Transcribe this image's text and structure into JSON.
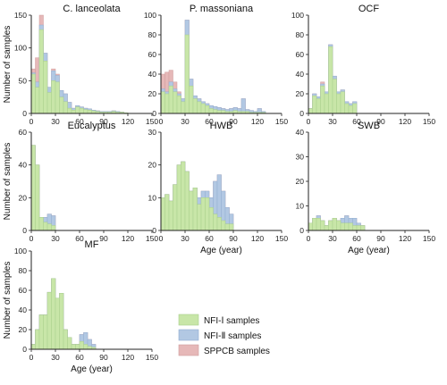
{
  "legend": {
    "items": [
      {
        "label": "NFI-Ⅰ samples",
        "color": "#c8e6a8",
        "edge": "#a9cf8c"
      },
      {
        "label": "NFI-Ⅱ samples",
        "color": "#b2c8e3",
        "edge": "#93aed1"
      },
      {
        "label": "SPPCB samples",
        "color": "#e6b8b8",
        "edge": "#cf9c9c"
      }
    ]
  },
  "chart_data": [
    {
      "type": "bar",
      "title": "C. lanceolata",
      "xlabel": "",
      "ylabel": "Number of samples",
      "xlim": [
        0,
        150
      ],
      "ylim": [
        0,
        150
      ],
      "bin_width": 5,
      "xticks": [
        0,
        30,
        60,
        90,
        120,
        150
      ],
      "yticks": [
        0,
        50,
        100,
        150
      ],
      "series": [
        {
          "name": "NFI-Ⅰ samples",
          "x": [
            0,
            5,
            10,
            15,
            20,
            25,
            30,
            35,
            40,
            45,
            50,
            55,
            60,
            65,
            70,
            75,
            80,
            85,
            90,
            95,
            100,
            105,
            110,
            115
          ],
          "values": [
            60,
            40,
            128,
            80,
            32,
            50,
            48,
            25,
            18,
            8,
            5,
            10,
            8,
            6,
            5,
            4,
            3,
            2,
            2,
            2,
            3,
            2,
            2,
            1
          ]
        },
        {
          "name": "NFI-Ⅱ samples",
          "x": [
            0,
            5,
            10,
            15,
            20,
            25,
            30,
            35,
            40,
            45,
            50,
            55,
            60,
            65,
            70,
            75,
            80,
            85,
            90,
            95,
            100,
            105,
            110,
            115
          ],
          "values": [
            62,
            48,
            135,
            92,
            40,
            65,
            58,
            35,
            30,
            17,
            8,
            12,
            10,
            8,
            7,
            5,
            4,
            3,
            3,
            3,
            4,
            3,
            2,
            1
          ]
        },
        {
          "name": "SPPCB samples",
          "x": [
            0,
            5,
            10,
            15,
            20,
            25,
            30,
            35,
            40,
            45,
            50,
            55,
            60,
            65,
            70,
            75,
            80,
            85,
            90,
            95,
            100,
            105,
            110,
            115
          ],
          "values": [
            68,
            85,
            150,
            92,
            40,
            68,
            60,
            35,
            30,
            17,
            8,
            12,
            10,
            8,
            7,
            5,
            4,
            3,
            3,
            3,
            4,
            3,
            2,
            1
          ]
        }
      ]
    },
    {
      "type": "bar",
      "title": "P. massoniana",
      "xlabel": "",
      "ylabel": "",
      "xlim": [
        0,
        150
      ],
      "ylim": [
        0,
        100
      ],
      "bin_width": 5,
      "xticks": [
        0,
        30,
        60,
        90,
        120,
        150
      ],
      "yticks": [
        0,
        20,
        40,
        60,
        80,
        100
      ],
      "series": [
        {
          "name": "NFI-Ⅰ samples",
          "x": [
            0,
            5,
            10,
            15,
            20,
            25,
            30,
            35,
            40,
            45,
            50,
            55,
            60,
            65,
            70,
            75,
            80,
            85,
            90,
            95,
            100,
            105,
            110,
            115,
            120,
            125
          ],
          "values": [
            22,
            20,
            28,
            22,
            18,
            12,
            80,
            28,
            15,
            12,
            10,
            8,
            5,
            4,
            3,
            3,
            2,
            2,
            3,
            2,
            2,
            2,
            1,
            1,
            1,
            1
          ]
        },
        {
          "name": "NFI-Ⅱ samples",
          "x": [
            0,
            5,
            10,
            15,
            20,
            25,
            30,
            35,
            40,
            45,
            50,
            55,
            60,
            65,
            70,
            75,
            80,
            85,
            90,
            95,
            100,
            105,
            110,
            115,
            120,
            125
          ],
          "values": [
            25,
            22,
            32,
            25,
            20,
            15,
            95,
            35,
            18,
            15,
            12,
            10,
            8,
            7,
            6,
            5,
            4,
            5,
            6,
            5,
            15,
            4,
            3,
            2,
            5,
            2
          ]
        },
        {
          "name": "SPPCB samples",
          "x": [
            0,
            5,
            10,
            15,
            20,
            25,
            30,
            35,
            40,
            45,
            50,
            55,
            60,
            65,
            70,
            75,
            80,
            85,
            90,
            95,
            100,
            105,
            110,
            115,
            120,
            125
          ],
          "values": [
            40,
            42,
            44,
            32,
            22,
            15,
            95,
            35,
            18,
            15,
            12,
            10,
            8,
            7,
            6,
            5,
            4,
            5,
            6,
            5,
            15,
            4,
            3,
            2,
            5,
            2
          ]
        }
      ]
    },
    {
      "type": "bar",
      "title": "OCF",
      "xlabel": "",
      "ylabel": "",
      "xlim": [
        0,
        150
      ],
      "ylim": [
        0,
        100
      ],
      "bin_width": 5,
      "xticks": [
        0,
        30,
        60,
        90,
        120,
        150
      ],
      "yticks": [
        0,
        20,
        40,
        60,
        80,
        100
      ],
      "series": [
        {
          "name": "NFI-Ⅰ samples",
          "x": [
            0,
            5,
            10,
            15,
            20,
            25,
            30,
            35,
            40,
            45,
            50,
            55
          ],
          "values": [
            5,
            18,
            15,
            28,
            20,
            68,
            35,
            20,
            22,
            10,
            8,
            10
          ]
        },
        {
          "name": "NFI-Ⅱ samples",
          "x": [
            0,
            5,
            10,
            15,
            20,
            25,
            30,
            35,
            40,
            45,
            50,
            55
          ],
          "values": [
            5,
            20,
            17,
            30,
            22,
            70,
            38,
            22,
            24,
            12,
            10,
            12
          ]
        },
        {
          "name": "SPPCB samples",
          "x": [
            0,
            5,
            10,
            15,
            20,
            25,
            30,
            35,
            40,
            45,
            50,
            55
          ],
          "values": [
            5,
            20,
            17,
            32,
            22,
            70,
            38,
            22,
            24,
            12,
            10,
            12
          ]
        }
      ]
    },
    {
      "type": "bar",
      "title": "Eucalyptus",
      "xlabel": "",
      "ylabel": "Number of samples",
      "xlim": [
        0,
        150
      ],
      "ylim": [
        0,
        60
      ],
      "bin_width": 5,
      "xticks": [
        0,
        30,
        60,
        90,
        120,
        150
      ],
      "yticks": [
        0,
        20,
        40,
        60
      ],
      "series": [
        {
          "name": "NFI-Ⅰ samples",
          "x": [
            0,
            5,
            10,
            15,
            20,
            25
          ],
          "values": [
            52,
            40,
            8,
            5,
            4,
            3
          ]
        },
        {
          "name": "NFI-Ⅱ samples",
          "x": [
            0,
            5,
            10,
            15,
            20,
            25
          ],
          "values": [
            52,
            40,
            8,
            8,
            10,
            9
          ]
        },
        {
          "name": "SPPCB samples",
          "x": [
            0,
            5,
            10,
            15,
            20,
            25
          ],
          "values": [
            52,
            40,
            8,
            8,
            10,
            9
          ]
        }
      ]
    },
    {
      "type": "bar",
      "title": "HWB",
      "xlabel": "Age (year)",
      "ylabel": "",
      "xlim": [
        0,
        150
      ],
      "ylim": [
        0,
        30
      ],
      "bin_width": 5,
      "xticks": [
        0,
        30,
        60,
        90,
        120,
        150
      ],
      "yticks": [
        0,
        10,
        20,
        30
      ],
      "series": [
        {
          "name": "NFI-Ⅰ samples",
          "x": [
            0,
            5,
            10,
            15,
            20,
            25,
            30,
            35,
            40,
            45,
            50,
            55,
            60,
            65,
            70,
            75,
            80,
            85
          ],
          "values": [
            10,
            11,
            9,
            14,
            20,
            21,
            18,
            12,
            13,
            8,
            10,
            10,
            7,
            5,
            4,
            3,
            2,
            2
          ]
        },
        {
          "name": "NFI-Ⅱ samples",
          "x": [
            0,
            5,
            10,
            15,
            20,
            25,
            30,
            35,
            40,
            45,
            50,
            55,
            60,
            65,
            70,
            75,
            80,
            85
          ],
          "values": [
            10,
            11,
            9,
            14,
            20,
            21,
            18,
            12,
            13,
            10,
            12,
            12,
            10,
            15,
            17,
            12,
            7,
            5
          ]
        },
        {
          "name": "SPPCB samples",
          "x": [
            0,
            5,
            10,
            15,
            20,
            25,
            30,
            35,
            40,
            45,
            50,
            55,
            60,
            65,
            70,
            75,
            80,
            85
          ],
          "values": [
            10,
            11,
            9,
            14,
            20,
            21,
            18,
            12,
            13,
            10,
            12,
            12,
            10,
            15,
            17,
            12,
            7,
            5
          ]
        }
      ]
    },
    {
      "type": "bar",
      "title": "SWB",
      "xlabel": "Age (year)",
      "ylabel": "",
      "xlim": [
        0,
        150
      ],
      "ylim": [
        0,
        40
      ],
      "bin_width": 5,
      "xticks": [
        0,
        30,
        60,
        90,
        120,
        150
      ],
      "yticks": [
        0,
        10,
        20,
        30,
        40
      ],
      "series": [
        {
          "name": "NFI-Ⅰ samples",
          "x": [
            0,
            5,
            10,
            15,
            20,
            25,
            30,
            35,
            40,
            45,
            50,
            55,
            60,
            65
          ],
          "values": [
            3,
            5,
            5,
            4,
            2,
            4,
            5,
            4,
            3,
            3,
            3,
            2,
            2,
            2
          ]
        },
        {
          "name": "NFI-Ⅱ samples",
          "x": [
            0,
            5,
            10,
            15,
            20,
            25,
            30,
            35,
            40,
            45,
            50,
            55,
            60,
            65
          ],
          "values": [
            3,
            5,
            6,
            4,
            2,
            4,
            5,
            4,
            5,
            6,
            5,
            5,
            3,
            2
          ]
        },
        {
          "name": "SPPCB samples",
          "x": [
            0,
            5,
            10,
            15,
            20,
            25,
            30,
            35,
            40,
            45,
            50,
            55,
            60,
            65
          ],
          "values": [
            3,
            5,
            6,
            4,
            2,
            4,
            5,
            4,
            5,
            6,
            5,
            5,
            3,
            2
          ]
        }
      ]
    },
    {
      "type": "bar",
      "title": "MF",
      "xlabel": "Age (year)",
      "ylabel": "Number of samples",
      "xlim": [
        0,
        150
      ],
      "ylim": [
        0,
        100
      ],
      "bin_width": 5,
      "xticks": [
        0,
        30,
        60,
        90,
        120,
        150
      ],
      "yticks": [
        0,
        20,
        40,
        60,
        80,
        100
      ],
      "series": [
        {
          "name": "NFI-Ⅰ samples",
          "x": [
            0,
            5,
            10,
            15,
            20,
            25,
            30,
            35,
            40,
            45,
            50,
            55,
            60,
            65,
            70,
            75
          ],
          "values": [
            5,
            20,
            35,
            35,
            58,
            72,
            52,
            57,
            20,
            12,
            5,
            5,
            8,
            5,
            3,
            2
          ]
        },
        {
          "name": "NFI-Ⅱ samples",
          "x": [
            0,
            5,
            10,
            15,
            20,
            25,
            30,
            35,
            40,
            45,
            50,
            55,
            60,
            65,
            70,
            75
          ],
          "values": [
            5,
            20,
            35,
            35,
            58,
            72,
            52,
            57,
            20,
            12,
            5,
            5,
            15,
            17,
            10,
            5
          ]
        },
        {
          "name": "SPPCB samples",
          "x": [
            0,
            5,
            10,
            15,
            20,
            25,
            30,
            35,
            40,
            45,
            50,
            55,
            60,
            65,
            70,
            75
          ],
          "values": [
            5,
            20,
            35,
            35,
            58,
            72,
            52,
            57,
            20,
            12,
            5,
            5,
            15,
            17,
            10,
            5
          ]
        }
      ]
    }
  ]
}
